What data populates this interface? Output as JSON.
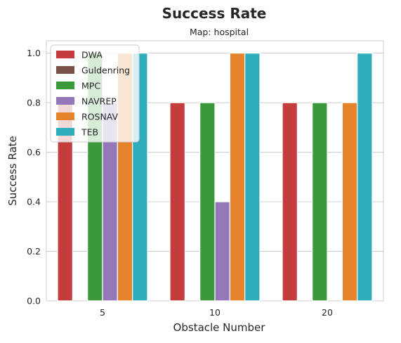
{
  "chart_data": {
    "type": "bar",
    "title": "Success Rate",
    "subtitle": "Map: hospital",
    "xlabel": "Obstacle Number",
    "ylabel": "Success Rate",
    "categories": [
      "5",
      "10",
      "20"
    ],
    "ylim": [
      0,
      1.05
    ],
    "yticks": [
      "0.0",
      "0.2",
      "0.4",
      "0.6",
      "0.8",
      "1.0"
    ],
    "grid": true,
    "legend_position": "top-left",
    "series": [
      {
        "name": "DWA",
        "color": "#c43c3c",
        "values": [
          0.8,
          0.8,
          0.8
        ]
      },
      {
        "name": "Guldenring",
        "color": "#7a5147",
        "values": [
          0.0,
          0.0,
          0.0
        ]
      },
      {
        "name": "MPC",
        "color": "#3a9a3a",
        "values": [
          1.0,
          0.8,
          0.8
        ]
      },
      {
        "name": "NAVREP",
        "color": "#9477b8",
        "values": [
          0.8,
          0.4,
          0.0
        ]
      },
      {
        "name": "ROSNAV",
        "color": "#e6832d",
        "values": [
          1.0,
          1.0,
          0.8
        ]
      },
      {
        "name": "TEB",
        "color": "#2eaebd",
        "values": [
          1.0,
          1.0,
          1.0
        ]
      }
    ]
  }
}
